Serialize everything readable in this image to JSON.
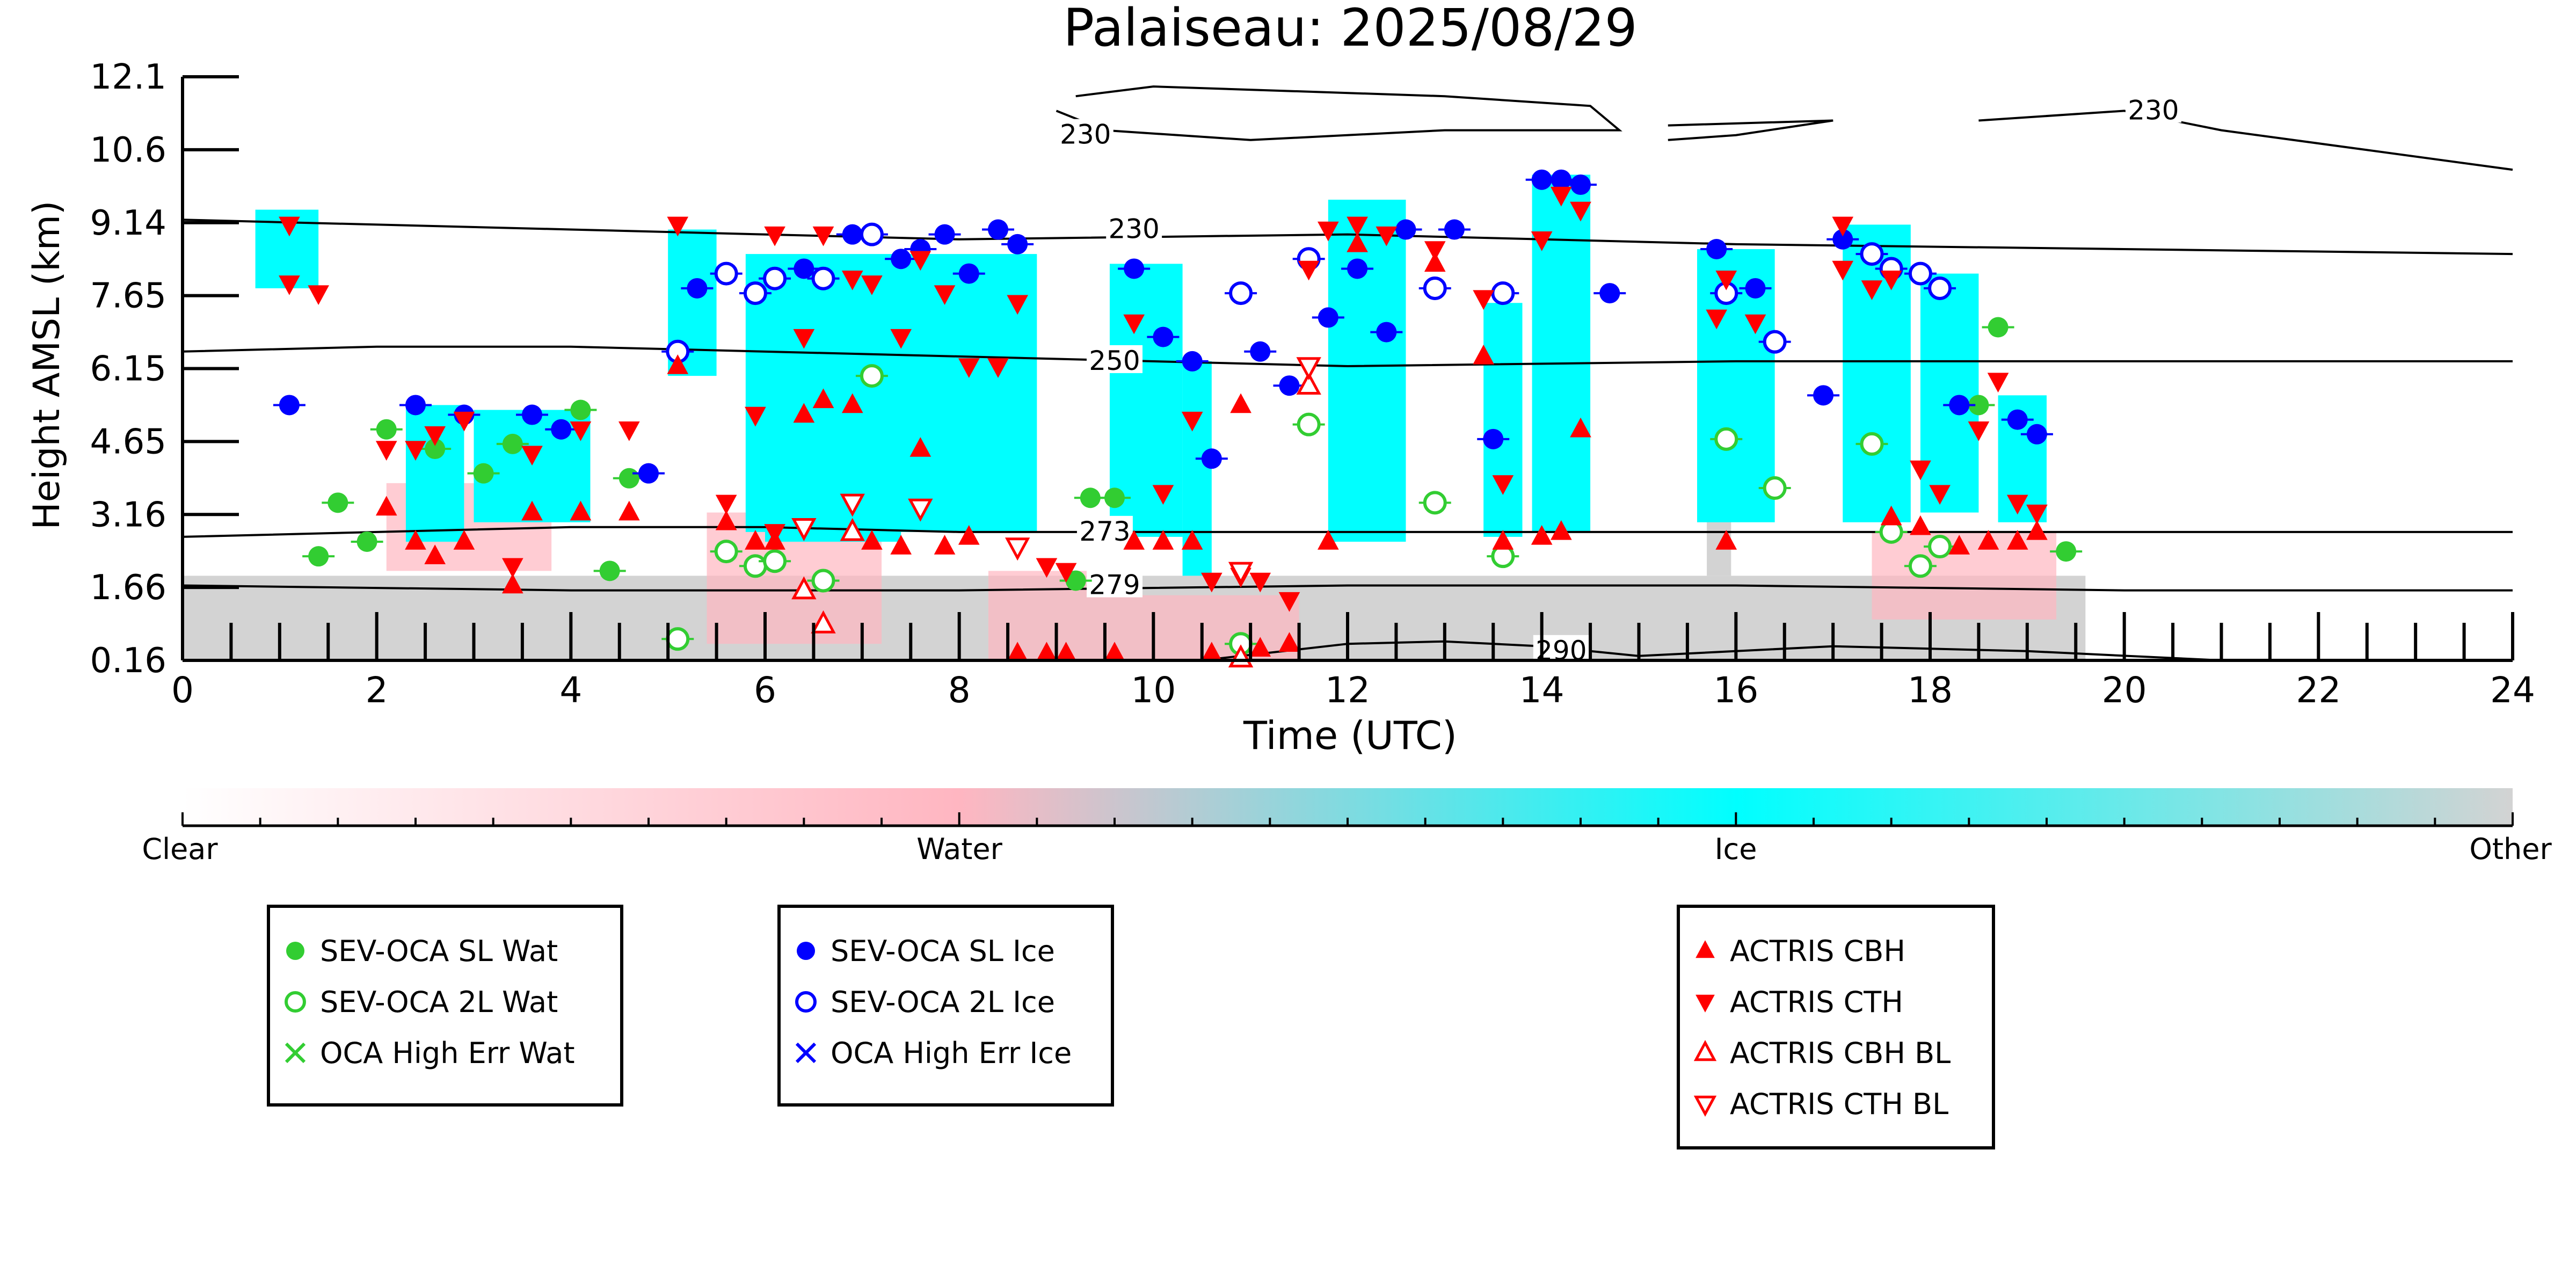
{
  "chart_data": {
    "type": "scatter",
    "title": "Palaiseau: 2025/08/29",
    "xlabel": "Time (UTC)",
    "ylabel": "Height AMSL (km)",
    "xlim": [
      0,
      24
    ],
    "ylim": [
      0.16,
      12.1
    ],
    "x_ticks": [
      "0",
      "2",
      "4",
      "6",
      "8",
      "10",
      "12",
      "14",
      "16",
      "18",
      "20",
      "22",
      "24"
    ],
    "y_ticks": [
      "0.16",
      "1.66",
      "3.16",
      "4.65",
      "6.15",
      "7.65",
      "9.14",
      "10.6",
      "12.1"
    ],
    "grid": false,
    "colorbar": {
      "labels": [
        "Clear",
        "Water",
        "Ice",
        "Other"
      ],
      "colors": [
        "#ffffff",
        "#ffb6c1",
        "#00ffff",
        "#d3d3d3"
      ]
    },
    "classification_colors": {
      "water": "#ffb6c1",
      "ice": "#00ffff",
      "other": "#d3d3d3"
    },
    "temperature_contours": [
      {
        "label": "230",
        "points": [
          [
            0,
            9.2
          ],
          [
            4,
            9.0
          ],
          [
            8,
            8.8
          ],
          [
            12,
            8.9
          ],
          [
            16,
            8.7
          ],
          [
            20,
            8.6
          ],
          [
            24,
            8.5
          ]
        ],
        "label_at": [
          9.8,
          9.0
        ]
      },
      {
        "label": "250",
        "points": [
          [
            0,
            6.5
          ],
          [
            2,
            6.6
          ],
          [
            4,
            6.6
          ],
          [
            8,
            6.4
          ],
          [
            12,
            6.2
          ],
          [
            16,
            6.3
          ],
          [
            20,
            6.3
          ],
          [
            24,
            6.3
          ]
        ],
        "label_at": [
          9.6,
          6.3
        ]
      },
      {
        "label": "273",
        "points": [
          [
            0,
            2.7
          ],
          [
            2,
            2.8
          ],
          [
            4,
            2.9
          ],
          [
            6,
            2.9
          ],
          [
            8,
            2.8
          ],
          [
            12,
            2.8
          ],
          [
            16,
            2.8
          ],
          [
            20,
            2.8
          ],
          [
            24,
            2.8
          ]
        ],
        "label_at": [
          9.5,
          2.8
        ]
      },
      {
        "label": "279",
        "points": [
          [
            0,
            1.7
          ],
          [
            4,
            1.6
          ],
          [
            8,
            1.6
          ],
          [
            12,
            1.7
          ],
          [
            16,
            1.7
          ],
          [
            20,
            1.6
          ],
          [
            24,
            1.6
          ]
        ],
        "label_at": [
          9.6,
          1.7
        ]
      },
      {
        "label": "290",
        "points": [
          [
            10.5,
            0.16
          ],
          [
            12,
            0.5
          ],
          [
            13,
            0.55
          ],
          [
            14,
            0.45
          ],
          [
            15,
            0.25
          ],
          [
            17,
            0.45
          ],
          [
            19,
            0.35
          ],
          [
            21,
            0.16
          ]
        ],
        "label_at": [
          14.2,
          0.35
        ]
      },
      {
        "label": "230",
        "points": [
          [
            9.2,
            11.7
          ],
          [
            10,
            11.9
          ],
          [
            13,
            11.7
          ],
          [
            14.5,
            11.5
          ],
          [
            14.8,
            11.0
          ],
          [
            13,
            11.0
          ],
          [
            11,
            10.8
          ],
          [
            9.5,
            11.0
          ],
          [
            9.0,
            11.4
          ]
        ],
        "label_at": [
          9.3,
          10.9
        ]
      },
      {
        "label": "230",
        "points": [
          [
            18.5,
            11.2
          ],
          [
            20,
            11.4
          ],
          [
            21,
            11.0
          ],
          [
            24,
            10.2
          ]
        ],
        "label_at": [
          20.3,
          11.4
        ]
      },
      {
        "label": "",
        "points": [
          [
            15.3,
            11.1
          ],
          [
            17,
            11.2
          ],
          [
            16,
            10.9
          ],
          [
            15.3,
            10.8
          ]
        ],
        "label_at": [
          0,
          0
        ]
      }
    ],
    "legends": [
      {
        "entries": [
          {
            "label": "SEV-OCA SL Wat",
            "marker": "filled-circle",
            "color": "#32cd32"
          },
          {
            "label": "SEV-OCA 2L Wat",
            "marker": "open-circle",
            "color": "#32cd32"
          },
          {
            "label": "OCA High Err Wat",
            "marker": "x",
            "color": "#32cd32"
          }
        ]
      },
      {
        "entries": [
          {
            "label": "SEV-OCA SL Ice",
            "marker": "filled-circle",
            "color": "#0000ff"
          },
          {
            "label": "SEV-OCA 2L Ice",
            "marker": "open-circle",
            "color": "#0000ff"
          },
          {
            "label": "OCA High Err Ice",
            "marker": "x",
            "color": "#0000ff"
          }
        ]
      },
      {
        "entries": [
          {
            "label": "ACTRIS CBH",
            "marker": "triangle-up",
            "color": "#ff0000"
          },
          {
            "label": "ACTRIS CTH",
            "marker": "triangle-down",
            "color": "#ff0000"
          },
          {
            "label": "ACTRIS CBH BL",
            "marker": "open-triangle-up",
            "color": "#ff0000"
          },
          {
            "label": "ACTRIS CTH BL",
            "marker": "open-triangle-down",
            "color": "#ff0000"
          }
        ]
      }
    ],
    "series": [
      {
        "name": "SEV-OCA SL Wat",
        "color": "#32cd32",
        "marker": "filled-circle",
        "points": [
          [
            1.4,
            2.3
          ],
          [
            1.6,
            3.4
          ],
          [
            1.9,
            2.6
          ],
          [
            2.1,
            4.9
          ],
          [
            2.6,
            4.5
          ],
          [
            3.1,
            4.0
          ],
          [
            3.4,
            4.6
          ],
          [
            4.1,
            5.3
          ],
          [
            4.4,
            2.0
          ],
          [
            4.6,
            3.9
          ],
          [
            9.2,
            1.8
          ],
          [
            9.35,
            3.5
          ],
          [
            9.6,
            3.5
          ],
          [
            18.5,
            5.4
          ],
          [
            18.7,
            7.0
          ],
          [
            19.4,
            2.4
          ]
        ]
      },
      {
        "name": "SEV-OCA 2L Wat",
        "color": "#32cd32",
        "marker": "open-circle",
        "points": [
          [
            5.1,
            0.6
          ],
          [
            5.6,
            2.4
          ],
          [
            5.9,
            2.1
          ],
          [
            6.1,
            2.2
          ],
          [
            6.6,
            1.8
          ],
          [
            7.1,
            6.0
          ],
          [
            10.9,
            0.5
          ],
          [
            11.6,
            5.0
          ],
          [
            12.9,
            3.4
          ],
          [
            13.6,
            2.3
          ],
          [
            15.9,
            4.7
          ],
          [
            16.4,
            3.7
          ],
          [
            17.4,
            4.6
          ],
          [
            17.6,
            2.8
          ],
          [
            17.9,
            2.1
          ],
          [
            18.1,
            2.5
          ]
        ]
      },
      {
        "name": "SEV-OCA SL Ice",
        "color": "#0000ff",
        "marker": "filled-circle",
        "points": [
          [
            1.1,
            5.4
          ],
          [
            2.4,
            5.4
          ],
          [
            2.9,
            5.2
          ],
          [
            3.6,
            5.2
          ],
          [
            3.9,
            4.9
          ],
          [
            4.8,
            4.0
          ],
          [
            5.3,
            7.8
          ],
          [
            6.4,
            8.2
          ],
          [
            6.9,
            8.9
          ],
          [
            7.4,
            8.4
          ],
          [
            7.6,
            8.6
          ],
          [
            7.85,
            8.9
          ],
          [
            8.1,
            8.1
          ],
          [
            8.4,
            9.0
          ],
          [
            8.6,
            8.7
          ],
          [
            9.8,
            8.2
          ],
          [
            10.1,
            6.8
          ],
          [
            10.4,
            6.3
          ],
          [
            10.6,
            4.3
          ],
          [
            11.1,
            6.5
          ],
          [
            11.4,
            5.8
          ],
          [
            11.8,
            7.2
          ],
          [
            12.1,
            8.2
          ],
          [
            12.4,
            6.9
          ],
          [
            12.6,
            9.0
          ],
          [
            13.1,
            9.0
          ],
          [
            13.5,
            4.7
          ],
          [
            14.0,
            10.0
          ],
          [
            14.2,
            10.0
          ],
          [
            14.4,
            9.9
          ],
          [
            14.7,
            7.7
          ],
          [
            15.8,
            8.6
          ],
          [
            16.2,
            7.8
          ],
          [
            16.9,
            5.6
          ],
          [
            17.1,
            8.8
          ],
          [
            18.3,
            5.4
          ],
          [
            18.9,
            5.1
          ],
          [
            19.1,
            4.8
          ]
        ]
      },
      {
        "name": "SEV-OCA 2L Ice",
        "color": "#0000ff",
        "marker": "open-circle",
        "points": [
          [
            5.1,
            6.5
          ],
          [
            5.6,
            8.1
          ],
          [
            5.9,
            7.7
          ],
          [
            6.1,
            8.0
          ],
          [
            6.6,
            8.0
          ],
          [
            7.1,
            8.9
          ],
          [
            10.9,
            7.7
          ],
          [
            11.6,
            8.4
          ],
          [
            12.9,
            7.8
          ],
          [
            13.6,
            7.7
          ],
          [
            15.9,
            7.7
          ],
          [
            16.4,
            6.7
          ],
          [
            17.4,
            8.5
          ],
          [
            17.6,
            8.2
          ],
          [
            17.9,
            8.1
          ],
          [
            18.1,
            7.8
          ]
        ]
      },
      {
        "name": "ACTRIS CBH",
        "color": "#ff0000",
        "marker": "triangle-up",
        "points": [
          [
            2.1,
            3.3
          ],
          [
            2.4,
            2.6
          ],
          [
            2.6,
            2.3
          ],
          [
            2.9,
            2.6
          ],
          [
            3.4,
            1.7
          ],
          [
            3.6,
            3.2
          ],
          [
            4.1,
            3.2
          ],
          [
            4.6,
            3.2
          ],
          [
            5.1,
            6.2
          ],
          [
            5.6,
            3.0
          ],
          [
            5.9,
            2.6
          ],
          [
            6.1,
            2.6
          ],
          [
            6.4,
            5.2
          ],
          [
            6.6,
            5.5
          ],
          [
            6.9,
            5.4
          ],
          [
            7.1,
            2.6
          ],
          [
            7.4,
            2.5
          ],
          [
            7.6,
            4.5
          ],
          [
            7.85,
            2.5
          ],
          [
            8.1,
            2.7
          ],
          [
            8.6,
            0.3
          ],
          [
            8.9,
            0.3
          ],
          [
            9.1,
            0.3
          ],
          [
            9.6,
            0.3
          ],
          [
            9.8,
            2.6
          ],
          [
            10.1,
            2.6
          ],
          [
            10.4,
            2.6
          ],
          [
            10.6,
            0.3
          ],
          [
            10.9,
            5.4
          ],
          [
            11.1,
            0.4
          ],
          [
            11.4,
            0.5
          ],
          [
            11.8,
            2.6
          ],
          [
            12.1,
            8.7
          ],
          [
            12.9,
            8.3
          ],
          [
            13.4,
            6.4
          ],
          [
            13.6,
            2.6
          ],
          [
            14.0,
            2.7
          ],
          [
            14.2,
            2.8
          ],
          [
            14.4,
            4.9
          ],
          [
            15.9,
            2.6
          ],
          [
            17.6,
            3.1
          ],
          [
            17.9,
            2.9
          ],
          [
            18.3,
            2.5
          ],
          [
            18.6,
            2.6
          ],
          [
            18.9,
            2.6
          ],
          [
            19.1,
            2.8
          ]
        ]
      },
      {
        "name": "ACTRIS CTH",
        "color": "#ff0000",
        "marker": "triangle-down",
        "points": [
          [
            1.1,
            9.1
          ],
          [
            1.1,
            7.9
          ],
          [
            1.4,
            7.7
          ],
          [
            2.1,
            4.5
          ],
          [
            2.4,
            4.5
          ],
          [
            2.6,
            4.8
          ],
          [
            2.9,
            5.1
          ],
          [
            3.4,
            2.1
          ],
          [
            3.6,
            4.4
          ],
          [
            4.1,
            4.9
          ],
          [
            4.6,
            4.9
          ],
          [
            5.1,
            9.1
          ],
          [
            5.6,
            3.4
          ],
          [
            5.9,
            5.2
          ],
          [
            6.1,
            2.8
          ],
          [
            6.1,
            8.9
          ],
          [
            6.4,
            6.8
          ],
          [
            6.6,
            8.9
          ],
          [
            6.9,
            8.0
          ],
          [
            7.1,
            7.9
          ],
          [
            7.4,
            6.8
          ],
          [
            7.6,
            8.4
          ],
          [
            7.85,
            7.7
          ],
          [
            8.1,
            6.2
          ],
          [
            8.4,
            6.2
          ],
          [
            8.6,
            7.5
          ],
          [
            8.9,
            2.1
          ],
          [
            9.1,
            2.0
          ],
          [
            9.8,
            7.1
          ],
          [
            10.1,
            3.6
          ],
          [
            10.4,
            5.1
          ],
          [
            10.6,
            1.8
          ],
          [
            10.9,
            1.9
          ],
          [
            11.1,
            1.8
          ],
          [
            11.4,
            1.4
          ],
          [
            11.6,
            8.2
          ],
          [
            11.8,
            9.0
          ],
          [
            12.1,
            9.1
          ],
          [
            12.4,
            8.9
          ],
          [
            12.9,
            8.6
          ],
          [
            13.4,
            7.6
          ],
          [
            13.6,
            3.8
          ],
          [
            14.0,
            8.8
          ],
          [
            14.2,
            9.7
          ],
          [
            14.4,
            9.4
          ],
          [
            15.8,
            7.2
          ],
          [
            15.9,
            8.0
          ],
          [
            16.2,
            7.1
          ],
          [
            17.1,
            9.1
          ],
          [
            17.1,
            8.2
          ],
          [
            17.4,
            7.8
          ],
          [
            17.6,
            8.0
          ],
          [
            17.9,
            4.1
          ],
          [
            18.1,
            3.6
          ],
          [
            18.5,
            4.9
          ],
          [
            18.7,
            5.9
          ],
          [
            18.9,
            3.4
          ],
          [
            19.1,
            3.2
          ]
        ]
      },
      {
        "name": "ACTRIS CBH BL",
        "color": "#ff0000",
        "marker": "open-triangle-up",
        "points": [
          [
            6.4,
            1.6
          ],
          [
            6.6,
            0.9
          ],
          [
            6.9,
            2.8
          ],
          [
            10.9,
            0.2
          ],
          [
            11.6,
            5.8
          ]
        ]
      },
      {
        "name": "ACTRIS CTH BL",
        "color": "#ff0000",
        "marker": "open-triangle-down",
        "points": [
          [
            6.4,
            2.9
          ],
          [
            6.9,
            3.4
          ],
          [
            7.6,
            3.3
          ],
          [
            8.6,
            2.5
          ],
          [
            10.9,
            2.0
          ],
          [
            11.6,
            6.2
          ]
        ]
      }
    ]
  }
}
